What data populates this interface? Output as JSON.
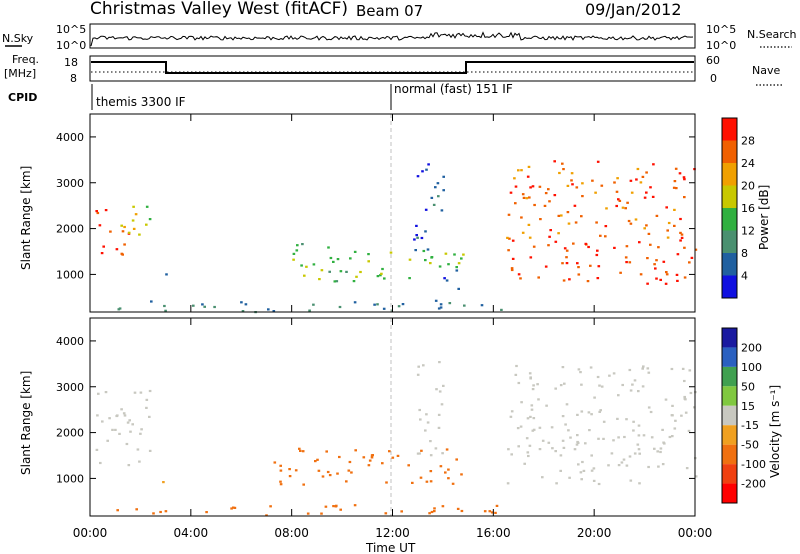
{
  "header": {
    "title": "Christmas Valley West (fitACF)",
    "beam": "Beam 07",
    "date": "09/Jan/2012"
  },
  "strips": {
    "nsky": {
      "label": "N.Sky",
      "ticks": [
        "10^5",
        "10^0"
      ],
      "right_ticks": [
        "10^5",
        "10^0"
      ],
      "right_label": "N.Search"
    },
    "freq": {
      "label_lines": [
        "Freq.",
        "[MHz]"
      ],
      "ticks": [
        "18",
        "8"
      ],
      "right_ticks": [
        "60",
        "0"
      ],
      "right_label": "Nave"
    },
    "cpid": {
      "label": "CPID",
      "modes": [
        "themis 3300 IF",
        "normal (fast) 151 IF"
      ]
    }
  },
  "time_axis": {
    "label": "Time UT",
    "ticks": [
      "00:00",
      "04:00",
      "08:00",
      "12:00",
      "16:00",
      "20:00",
      "00:00"
    ]
  },
  "range_axis": {
    "label": "Slant Range [km]",
    "ticks": [
      "1000",
      "2000",
      "3000",
      "4000"
    ]
  },
  "power_scale": {
    "label": "Power [dB]",
    "ticks": [
      "4",
      "8",
      "12",
      "16",
      "20",
      "24",
      "28"
    ],
    "colors": [
      "#1010e0",
      "#2060a0",
      "#4a9070",
      "#30b040",
      "#c8c800",
      "#f0a000",
      "#f06000",
      "#ff1000"
    ]
  },
  "velocity_scale": {
    "label": "Velocity [m s⁻¹]",
    "ticks": [
      "200",
      "100",
      "50",
      "15",
      "-15",
      "-50",
      "-100",
      "-200"
    ],
    "colors": [
      "#1a1aa0",
      "#2a60c0",
      "#40a050",
      "#80c840",
      "#c8c8c0",
      "#f0a020",
      "#f07010",
      "#f04010",
      "#ff0000"
    ]
  },
  "chart_data": [
    {
      "type": "heatmap",
      "title": "Power",
      "xlabel": "Time UT",
      "ylabel": "Slant Range [km]",
      "xlim": [
        0,
        24
      ],
      "ylim": [
        180,
        4500
      ],
      "colorbar_label": "Power [dB]",
      "blobs": [
        {
          "t": [
            0.1,
            1.5
          ],
          "r": [
            1300,
            2200
          ],
          "v": 27
        },
        {
          "t": [
            0.1,
            0.6
          ],
          "r": [
            2100,
            2800
          ],
          "v": 26
        },
        {
          "t": [
            1.2,
            2.4
          ],
          "r": [
            1800,
            2800
          ],
          "v": 18
        },
        {
          "t": [
            2.8,
            3.1
          ],
          "r": [
            850,
            1100
          ],
          "v": 8
        },
        {
          "t": [
            1.0,
            17.0
          ],
          "r": [
            200,
            450
          ],
          "v": 8
        },
        {
          "t": [
            7.2,
            10.5
          ],
          "r": [
            850,
            1700
          ],
          "v": 14
        },
        {
          "t": [
            10.5,
            14.8
          ],
          "r": [
            900,
            1600
          ],
          "v": 16
        },
        {
          "t": [
            12.8,
            14.0
          ],
          "r": [
            1500,
            3600
          ],
          "v": 5
        },
        {
          "t": [
            13.8,
            14.8
          ],
          "r": [
            700,
            1200
          ],
          "v": 6
        },
        {
          "t": [
            16.5,
            24.0
          ],
          "r": [
            800,
            1800
          ],
          "v": 28
        },
        {
          "t": [
            16.5,
            24.0
          ],
          "r": [
            1800,
            3500
          ],
          "v": 26
        }
      ]
    },
    {
      "type": "heatmap",
      "title": "Velocity",
      "xlabel": "Time UT",
      "ylabel": "Slant Range [km]",
      "xlim": [
        0,
        24
      ],
      "ylim": [
        180,
        4500
      ],
      "colorbar_label": "Velocity [m s^-1]",
      "blobs": [
        {
          "t": [
            0.1,
            2.4
          ],
          "r": [
            1300,
            3000
          ],
          "v": 0
        },
        {
          "t": [
            2.8,
            3.1
          ],
          "r": [
            850,
            1100
          ],
          "v": -40
        },
        {
          "t": [
            1.0,
            17.0
          ],
          "r": [
            200,
            450
          ],
          "v": -60
        },
        {
          "t": [
            7.2,
            11.0
          ],
          "r": [
            850,
            1700
          ],
          "v": -70
        },
        {
          "t": [
            11.0,
            14.8
          ],
          "r": [
            900,
            1700
          ],
          "v": -60
        },
        {
          "t": [
            12.8,
            14.0
          ],
          "r": [
            1500,
            3600
          ],
          "v": 10
        },
        {
          "t": [
            16.5,
            24.0
          ],
          "r": [
            900,
            1900
          ],
          "v": 0
        },
        {
          "t": [
            16.5,
            24.0
          ],
          "r": [
            1900,
            3500
          ],
          "v": 5
        }
      ]
    }
  ]
}
